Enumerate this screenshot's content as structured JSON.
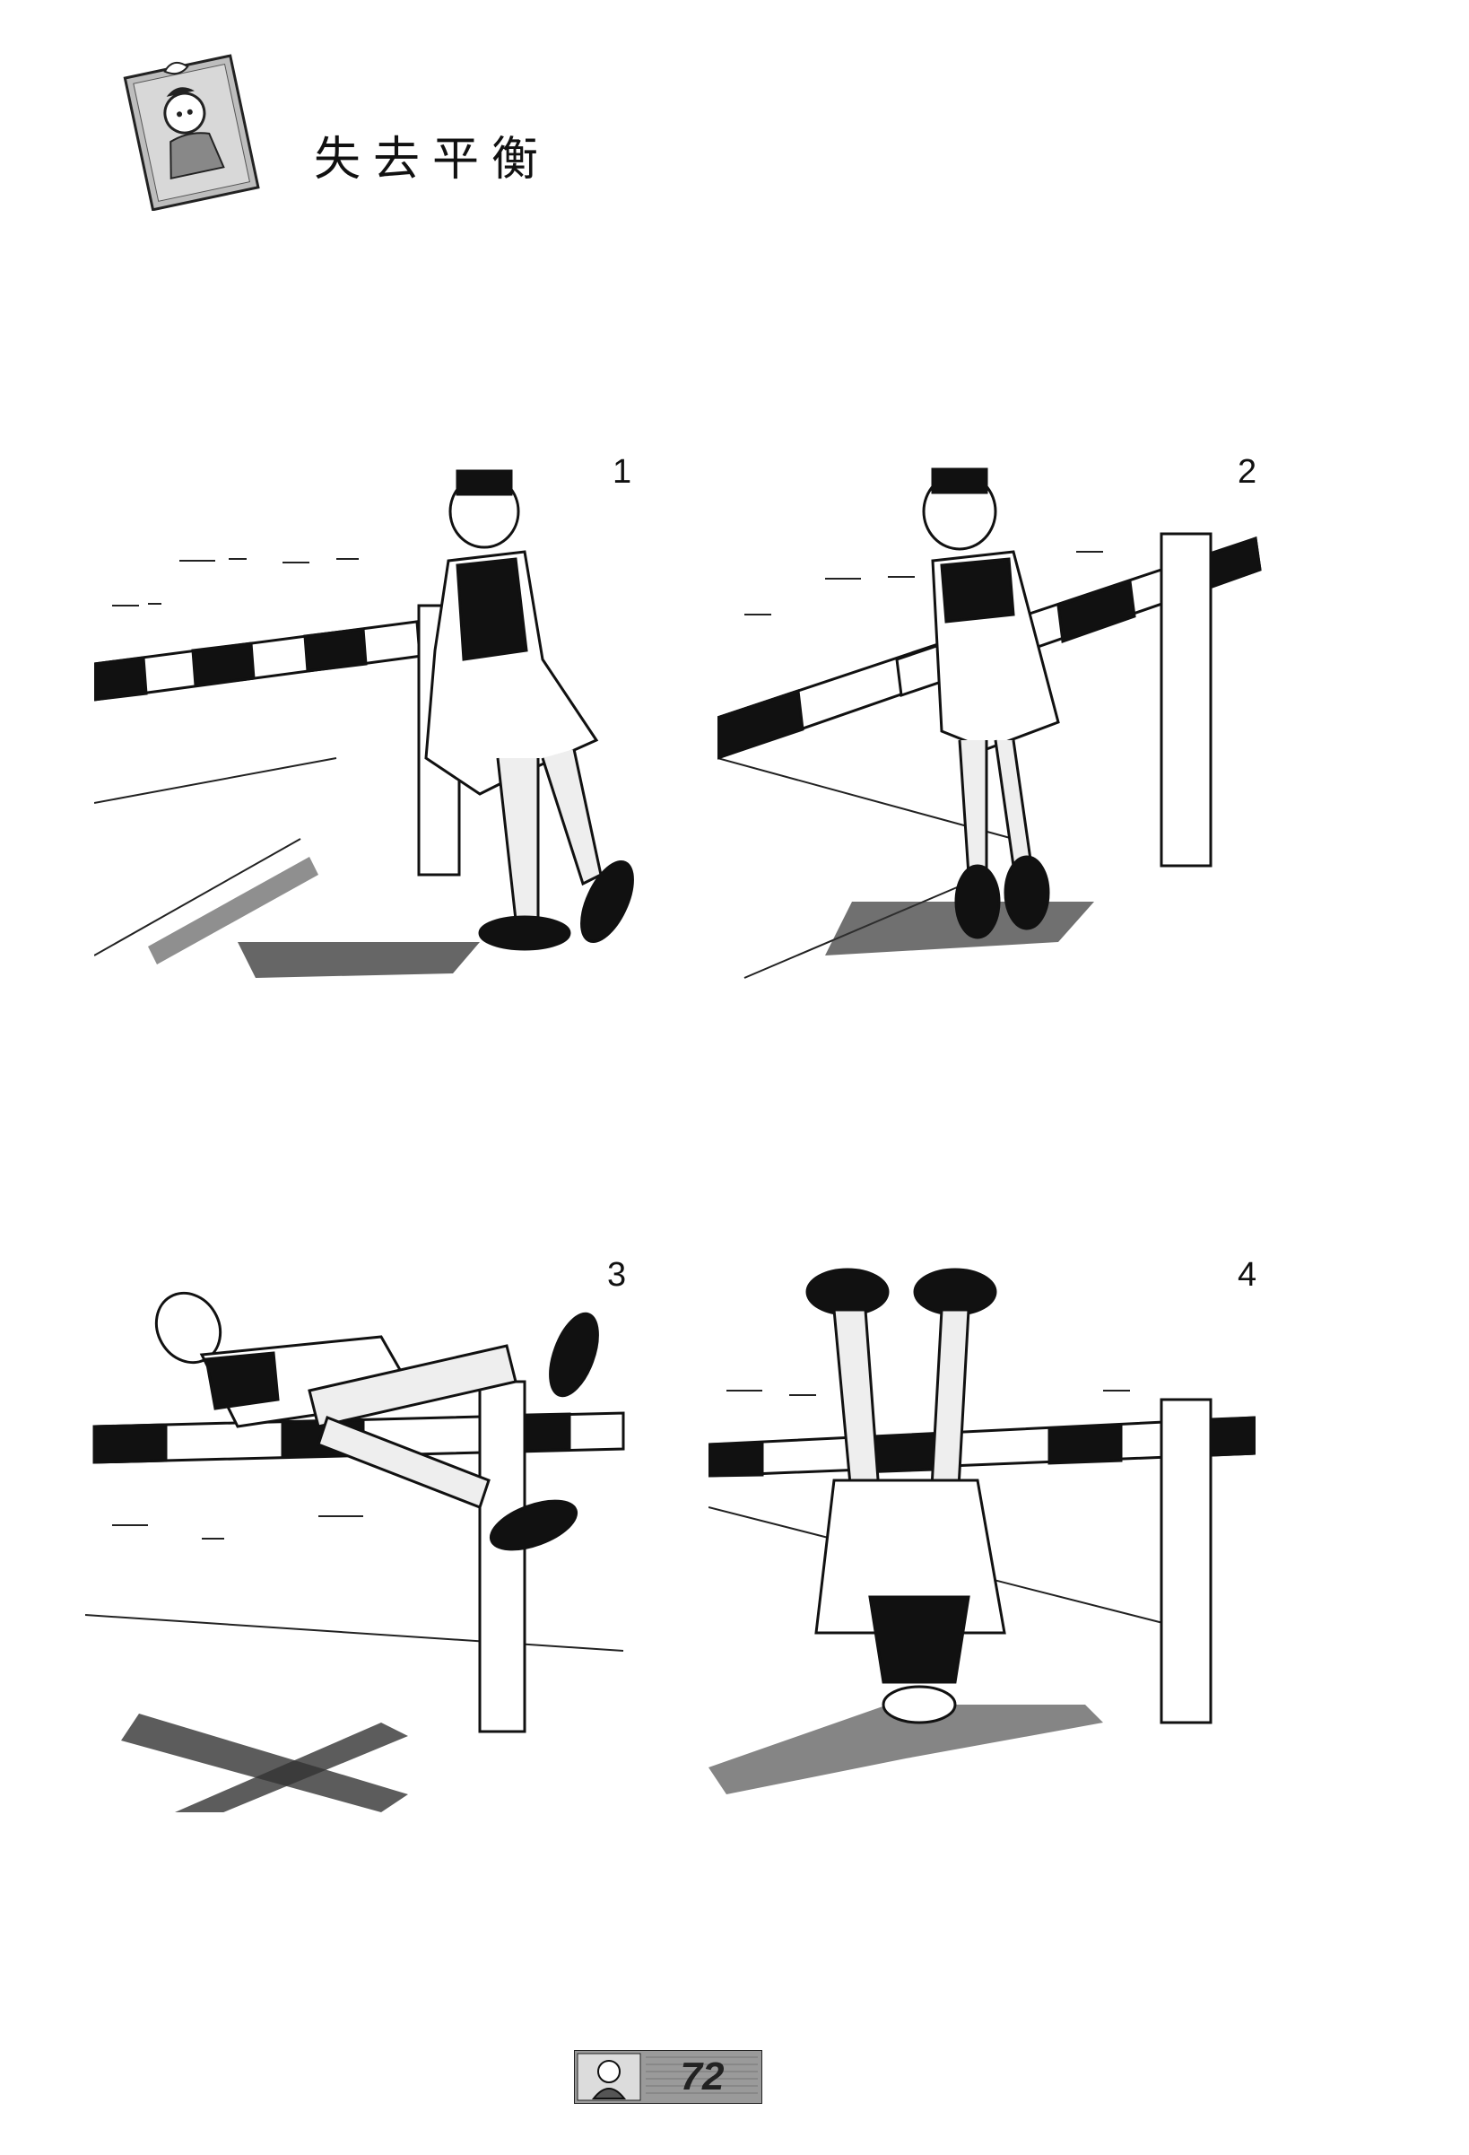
{
  "header": {
    "title": "失去平衡"
  },
  "panels": [
    {
      "number": "1"
    },
    {
      "number": "2"
    },
    {
      "number": "3"
    },
    {
      "number": "4"
    }
  ],
  "footer": {
    "page_number": "72"
  },
  "colors": {
    "ink": "#111111",
    "paper": "#ffffff",
    "shadow": "#333333",
    "tab": "#9a9a9a"
  }
}
